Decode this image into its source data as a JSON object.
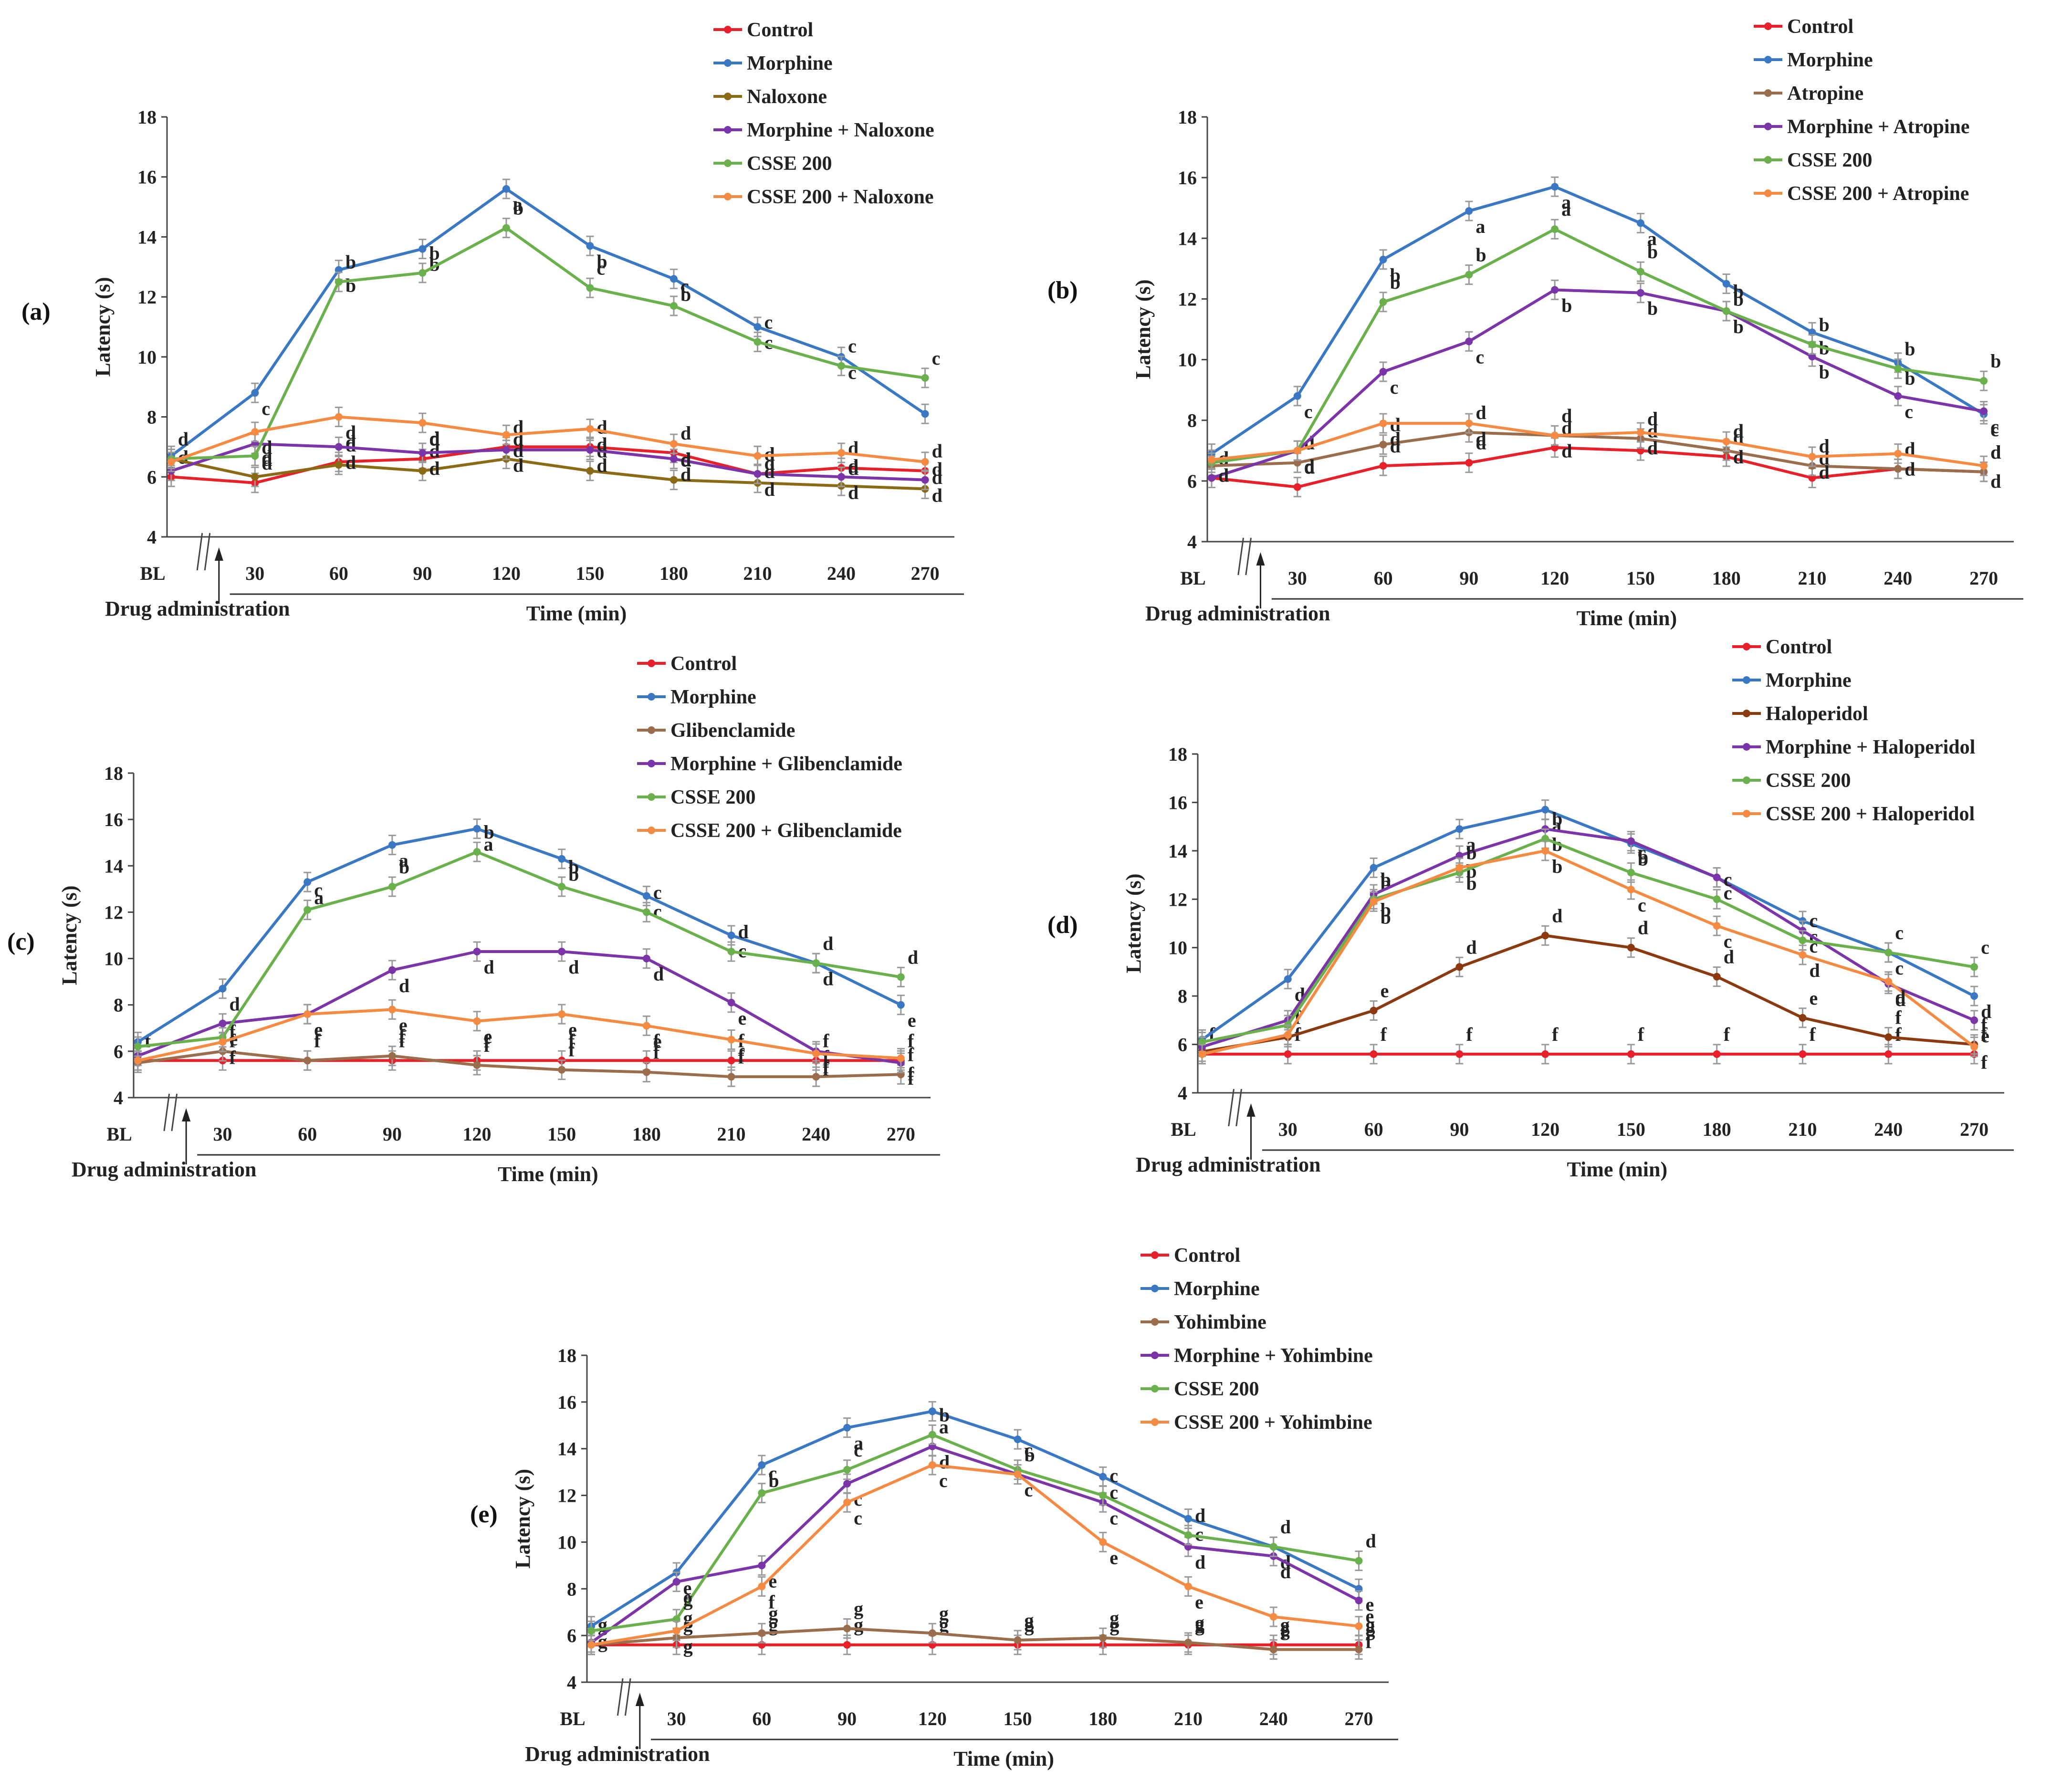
{
  "x_labels": [
    "BL",
    "30",
    "60",
    "90",
    "120",
    "150",
    "180",
    "210",
    "240",
    "270"
  ],
  "x_axis_title": "Time (min)",
  "drug_label": "Drug administration",
  "y_axis_title": "Latency (s)",
  "chart_data": [
    {
      "type": "line",
      "panel_label": "(a)",
      "ylim": [
        4,
        18
      ],
      "yticks": [
        "4",
        "6",
        "8",
        "10",
        "12",
        "14",
        "16",
        "18"
      ],
      "xlabel": "Time (min)",
      "ylabel": "Latency (s)",
      "categories": [
        "BL",
        "30",
        "60",
        "90",
        "120",
        "150",
        "180",
        "210",
        "240",
        "270"
      ],
      "series": [
        {
          "name": "Control",
          "color": "#e8202a",
          "values": [
            6.0,
            5.8,
            6.5,
            6.6,
            7.0,
            7.0,
            6.8,
            6.1,
            6.3,
            6.2
          ],
          "labels": [
            "d",
            "d",
            "d",
            "d",
            "d",
            "d",
            "d",
            "d",
            "d",
            "d"
          ]
        },
        {
          "name": "Morphine",
          "color": "#3a78c3",
          "values": [
            6.7,
            8.8,
            12.9,
            13.6,
            15.6,
            13.7,
            12.6,
            11.0,
            10.0,
            8.1
          ],
          "labels": [
            "",
            "c",
            "b",
            "b",
            "a",
            "b",
            "b",
            "c",
            "c",
            ""
          ]
        },
        {
          "name": "Naloxone",
          "color": "#8b6a16",
          "values": [
            6.6,
            6.0,
            6.4,
            6.2,
            6.6,
            6.2,
            5.9,
            5.8,
            5.7,
            5.6
          ],
          "labels": [
            "d",
            "d",
            "d",
            "d",
            "d",
            "d",
            "d",
            "d",
            "d",
            "d"
          ]
        },
        {
          "name": "Morphine + Naloxone",
          "color": "#7b35a8",
          "values": [
            6.2,
            7.1,
            7.0,
            6.8,
            6.9,
            6.9,
            6.6,
            6.1,
            6.0,
            5.9
          ],
          "labels": [
            "",
            "d",
            "d",
            "d",
            "d",
            "d",
            "d",
            "d",
            "d",
            "d"
          ]
        },
        {
          "name": "CSSE 200",
          "color": "#6ab04c",
          "values": [
            6.6,
            6.7,
            12.5,
            12.8,
            14.3,
            12.3,
            11.7,
            10.5,
            9.7,
            9.3
          ],
          "labels": [
            "",
            "",
            "b",
            "b",
            "b",
            "c",
            "c",
            "c",
            "c",
            "c"
          ]
        },
        {
          "name": "CSSE 200 + Naloxone",
          "color": "#f58a42",
          "values": [
            6.5,
            7.5,
            8.0,
            7.8,
            7.4,
            7.6,
            7.1,
            6.7,
            6.8,
            6.5
          ],
          "labels": [
            "",
            "d",
            "d",
            "d",
            "d",
            "d",
            "d",
            "d",
            "d",
            "d"
          ]
        }
      ]
    },
    {
      "type": "line",
      "panel_label": "(b)",
      "ylim": [
        4,
        18
      ],
      "yticks": [
        "4",
        "6",
        "8",
        "10",
        "12",
        "14",
        "16",
        "18"
      ],
      "xlabel": "Time (min)",
      "ylabel": "Latency (s)",
      "categories": [
        "BL",
        "30",
        "60",
        "90",
        "120",
        "150",
        "180",
        "210",
        "240",
        "270"
      ],
      "series": [
        {
          "name": "Control",
          "color": "#e8202a",
          "values": [
            6.1,
            5.8,
            6.5,
            6.6,
            7.1,
            7.0,
            6.8,
            6.1,
            6.4,
            6.3
          ],
          "labels": [
            "d",
            "d",
            "d",
            "d",
            "d",
            "d",
            "d",
            "d",
            "d",
            "d"
          ]
        },
        {
          "name": "Morphine",
          "color": "#3a78c3",
          "values": [
            6.9,
            8.8,
            13.3,
            14.9,
            15.7,
            14.5,
            12.5,
            10.9,
            9.9,
            8.2
          ],
          "labels": [
            "",
            "c",
            "b",
            "a",
            "a",
            "a",
            "b",
            "b",
            "b",
            "c"
          ]
        },
        {
          "name": "Atropine",
          "color": "#9a6e4c",
          "values": [
            6.5,
            6.6,
            7.2,
            7.6,
            7.5,
            7.4,
            7.0,
            6.5,
            6.4,
            6.3
          ],
          "labels": [
            "",
            "d",
            "d",
            "d",
            "d",
            "d",
            "d",
            "d",
            "d",
            "d"
          ]
        },
        {
          "name": "Morphine + Atropine",
          "color": "#7b35a8",
          "values": [
            6.1,
            7.0,
            9.6,
            10.6,
            12.3,
            12.2,
            11.6,
            10.1,
            8.8,
            8.3
          ],
          "labels": [
            "",
            "d",
            "c",
            "c",
            "b",
            "b",
            "b",
            "b",
            "c",
            "c"
          ]
        },
        {
          "name": "CSSE 200",
          "color": "#6ab04c",
          "values": [
            6.6,
            7.0,
            11.9,
            12.8,
            14.3,
            12.9,
            11.6,
            10.5,
            9.7,
            9.3
          ],
          "labels": [
            "",
            "",
            "b",
            "b",
            "a",
            "b",
            "b",
            "b",
            "b",
            "b"
          ]
        },
        {
          "name": "CSSE 200 + Atropine",
          "color": "#f58a42",
          "values": [
            6.7,
            7.0,
            7.9,
            7.9,
            7.5,
            7.6,
            7.3,
            6.8,
            6.9,
            6.5
          ],
          "labels": [
            "d",
            "d",
            "d",
            "d",
            "d",
            "d",
            "d",
            "d",
            "d",
            "d"
          ]
        }
      ]
    },
    {
      "type": "line",
      "panel_label": "(c)",
      "ylim": [
        4,
        18
      ],
      "yticks": [
        "4",
        "6",
        "8",
        "10",
        "12",
        "14",
        "16",
        "18"
      ],
      "xlabel": "Time (min)",
      "ylabel": "Latency (s)",
      "categories": [
        "BL",
        "30",
        "60",
        "90",
        "120",
        "150",
        "180",
        "210",
        "240",
        "270"
      ],
      "series": [
        {
          "name": "Control",
          "color": "#e8202a",
          "values": [
            5.6,
            5.6,
            5.6,
            5.6,
            5.6,
            5.6,
            5.6,
            5.6,
            5.6,
            5.6
          ],
          "labels": [
            "f",
            "f",
            "f",
            "f",
            "f",
            "f",
            "f",
            "f",
            "f",
            "f"
          ]
        },
        {
          "name": "Morphine",
          "color": "#3a78c3",
          "values": [
            6.4,
            8.7,
            13.3,
            14.9,
            15.6,
            14.3,
            12.7,
            11.0,
            9.8,
            8.0
          ],
          "labels": [
            "",
            "d",
            "a",
            "a",
            "a",
            "b",
            "c",
            "c",
            "d",
            "e"
          ]
        },
        {
          "name": "Glibenclamide",
          "color": "#9a6e4c",
          "values": [
            5.5,
            6.0,
            5.6,
            5.8,
            5.4,
            5.2,
            5.1,
            4.9,
            4.9,
            5.0
          ],
          "labels": [
            "",
            "f",
            "f",
            "f",
            "f",
            "f",
            "f",
            "f",
            "f",
            "f"
          ]
        },
        {
          "name": "Morphine + Glibenclamide",
          "color": "#7b35a8",
          "values": [
            5.8,
            7.2,
            7.6,
            9.5,
            10.3,
            10.3,
            10.0,
            8.1,
            6.0,
            5.5
          ],
          "labels": [
            "",
            "e",
            "e",
            "d",
            "d",
            "d",
            "d",
            "e",
            "f",
            "f"
          ]
        },
        {
          "name": "CSSE 200",
          "color": "#6ab04c",
          "values": [
            6.2,
            6.6,
            12.1,
            13.1,
            14.6,
            13.1,
            12.0,
            10.3,
            9.8,
            9.2
          ],
          "labels": [
            "",
            "",
            "c",
            "b",
            "b",
            "b",
            "c",
            "d",
            "d",
            "d"
          ]
        },
        {
          "name": "CSSE 200 + Glibenclamide",
          "color": "#f58a42",
          "values": [
            5.6,
            6.4,
            7.6,
            7.8,
            7.3,
            7.6,
            7.1,
            6.5,
            5.9,
            5.7
          ],
          "labels": [
            "",
            "f",
            "e",
            "e",
            "e",
            "e",
            "e",
            "f",
            "f",
            "f"
          ]
        }
      ]
    },
    {
      "type": "line",
      "panel_label": "(d)",
      "ylim": [
        4,
        18
      ],
      "yticks": [
        "4",
        "6",
        "8",
        "10",
        "12",
        "14",
        "16",
        "18"
      ],
      "xlabel": "Time (min)",
      "ylabel": "Latency (s)",
      "categories": [
        "BL",
        "30",
        "60",
        "90",
        "120",
        "150",
        "180",
        "210",
        "240",
        "270"
      ],
      "series": [
        {
          "name": "Control",
          "color": "#e8202a",
          "values": [
            5.6,
            5.6,
            5.6,
            5.6,
            5.6,
            5.6,
            5.6,
            5.6,
            5.6,
            5.6
          ],
          "labels": [
            "f",
            "f",
            "f",
            "f",
            "f",
            "f",
            "f",
            "f",
            "f",
            "f"
          ]
        },
        {
          "name": "Morphine",
          "color": "#3a78c3",
          "values": [
            6.2,
            8.7,
            13.3,
            14.9,
            15.7,
            14.3,
            12.9,
            11.1,
            9.8,
            8.0
          ],
          "labels": [
            "",
            "d",
            "b",
            "a",
            "a",
            "b",
            "c",
            "c",
            "c",
            "d"
          ]
        },
        {
          "name": "Haloperidol",
          "color": "#8b3a10",
          "values": [
            5.7,
            6.3,
            7.4,
            9.2,
            10.5,
            10.0,
            8.8,
            7.1,
            6.3,
            6.0
          ],
          "labels": [
            "",
            "f",
            "e",
            "d",
            "d",
            "d",
            "d",
            "e",
            "f",
            "f"
          ]
        },
        {
          "name": "Morphine + Haloperidol",
          "color": "#7b35a8",
          "values": [
            5.9,
            7.0,
            12.2,
            13.8,
            14.9,
            14.4,
            12.9,
            10.7,
            8.5,
            7.0
          ],
          "labels": [
            "",
            "",
            "b",
            "b",
            "b",
            "b",
            "c",
            "c",
            "d",
            "e"
          ]
        },
        {
          "name": "CSSE 200",
          "color": "#6ab04c",
          "values": [
            6.1,
            6.8,
            12.0,
            13.1,
            14.5,
            13.1,
            12.0,
            10.3,
            9.8,
            9.2
          ],
          "labels": [
            "",
            "",
            "b",
            "b",
            "b",
            "c",
            "c",
            "c",
            "c",
            "c"
          ]
        },
        {
          "name": "CSSE 200 + Haloperidol",
          "color": "#f58a42",
          "values": [
            5.6,
            6.4,
            11.9,
            13.3,
            14.0,
            12.4,
            10.9,
            9.7,
            8.6,
            5.9
          ],
          "labels": [
            "",
            "",
            "b",
            "b",
            "b",
            "c",
            "c",
            "d",
            "d",
            "f"
          ]
        }
      ]
    },
    {
      "type": "line",
      "panel_label": "(e)",
      "ylim": [
        4,
        18
      ],
      "yticks": [
        "4",
        "6",
        "8",
        "10",
        "12",
        "14",
        "16",
        "18"
      ],
      "xlabel": "Time (min)",
      "ylabel": "Latency (s)",
      "categories": [
        "BL",
        "30",
        "60",
        "90",
        "120",
        "150",
        "180",
        "210",
        "240",
        "270"
      ],
      "series": [
        {
          "name": "Control",
          "color": "#e8202a",
          "values": [
            5.6,
            5.6,
            5.6,
            5.6,
            5.6,
            5.6,
            5.6,
            5.6,
            5.6,
            5.6
          ],
          "labels": [
            "g",
            "g",
            "g",
            "g",
            "g",
            "g",
            "g",
            "g",
            "g",
            "g"
          ]
        },
        {
          "name": "Morphine",
          "color": "#3a78c3",
          "values": [
            6.4,
            8.7,
            13.3,
            14.9,
            15.6,
            14.4,
            12.8,
            11.0,
            9.8,
            8.0
          ],
          "labels": [
            "g",
            "e",
            "b",
            "a",
            "a",
            "b",
            "c",
            "c",
            "d",
            "e"
          ]
        },
        {
          "name": "Yohimbine",
          "color": "#9a6e4c",
          "values": [
            5.6,
            5.9,
            6.1,
            6.3,
            6.1,
            5.8,
            5.9,
            5.7,
            5.4,
            5.4
          ],
          "labels": [
            "g",
            "g",
            "g",
            "g",
            "g",
            "g",
            "g",
            "g",
            "g",
            "g"
          ]
        },
        {
          "name": "Morphine + Yohimbine",
          "color": "#7b35a8",
          "values": [
            5.7,
            8.3,
            9.0,
            12.5,
            14.1,
            12.9,
            11.7,
            9.8,
            9.4,
            7.5
          ],
          "labels": [
            "",
            "e",
            "e",
            "c",
            "d",
            "c",
            "c",
            "d",
            "d",
            "e"
          ]
        },
        {
          "name": "CSSE 200",
          "color": "#6ab04c",
          "values": [
            6.2,
            6.7,
            12.1,
            13.1,
            14.6,
            13.1,
            12.0,
            10.3,
            9.8,
            9.2
          ],
          "labels": [
            "",
            "g",
            "c",
            "c",
            "b",
            "c",
            "c",
            "d",
            "d",
            "d"
          ]
        },
        {
          "name": "CSSE 200 + Yohimbine",
          "color": "#f58a42",
          "values": [
            5.6,
            6.2,
            8.1,
            11.7,
            13.3,
            12.9,
            10.0,
            8.1,
            6.8,
            6.4
          ],
          "labels": [
            "",
            "g",
            "f",
            "c",
            "c",
            "c",
            "e",
            "e",
            "f",
            "f"
          ]
        }
      ]
    }
  ]
}
